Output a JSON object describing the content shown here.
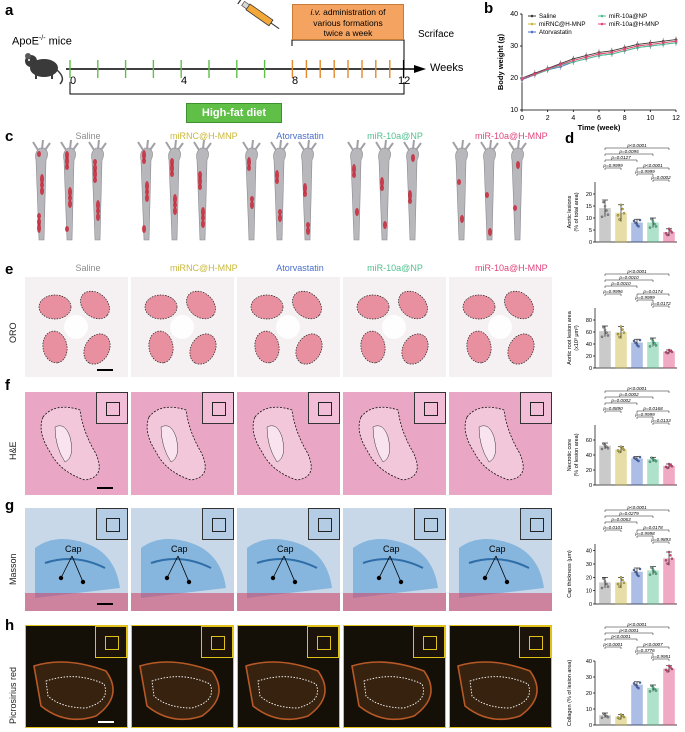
{
  "panels": {
    "a": "a",
    "b": "b",
    "c": "c",
    "d": "d",
    "e": "e",
    "f": "f",
    "g": "g",
    "h": "h"
  },
  "timeline": {
    "mouse_label": "ApoE",
    "mouse_sup": "-/-",
    "mouse_suffix": " mice",
    "iv_prefix": "i.v.",
    "iv_line1_rest": " administration  of",
    "iv_line2": "various formations",
    "iv_line3": "twice a week",
    "sacrifice": "Scriface",
    "weeks": "Weeks",
    "ticks": [
      "0",
      "4",
      "8",
      "12"
    ],
    "diet": "High-fat diet"
  },
  "groups": [
    "Saline",
    "miRNC@H-MNP",
    "Atorvastatin",
    "miR-10a@NP",
    "miR-10a@H-MNP"
  ],
  "group_colors": [
    "#8c8c8c",
    "#c9b83c",
    "#4a6fc9",
    "#4fc08d",
    "#e0457b"
  ],
  "rows": [
    "ORO",
    "H&E",
    "Masson",
    "Picrosirius red"
  ],
  "cap_label": "Cap",
  "chart_data": [
    {
      "id": "b",
      "type": "line",
      "xlabel": "Time (week)",
      "ylabel": "Body weight (g)",
      "x": [
        0,
        1,
        2,
        3,
        4,
        5,
        6,
        7,
        8,
        9,
        10,
        11,
        12
      ],
      "xticks": [
        "0",
        "2",
        "4",
        "6",
        "8",
        "10",
        "12"
      ],
      "yticks": [
        "10",
        "20",
        "30",
        "40"
      ],
      "ylim": [
        10,
        40
      ],
      "legend": [
        "Saline",
        "miRNC@H-MNP",
        "Atorvastatin",
        "miR-10a@NP",
        "miR-10a@H-MNP"
      ],
      "series": [
        {
          "name": "Saline",
          "color": "#3a3a3a",
          "values": [
            20,
            21.5,
            23,
            24.5,
            26,
            27,
            28,
            28.5,
            29.5,
            30.5,
            31,
            31.5,
            32
          ]
        },
        {
          "name": "miRNC@H-MNP",
          "color": "#c9b83c",
          "values": [
            19.5,
            21,
            22.5,
            24,
            25.5,
            26.5,
            27.5,
            28,
            29,
            30,
            30.5,
            31,
            31.5
          ]
        },
        {
          "name": "Atorvastatin",
          "color": "#4a6fc9",
          "values": [
            19.5,
            21,
            22.5,
            23.5,
            25,
            26,
            27,
            27.5,
            28.5,
            29.5,
            30,
            30.5,
            31
          ]
        },
        {
          "name": "miR-10a@NP",
          "color": "#4fc08d",
          "values": [
            20,
            21,
            22.5,
            24,
            25,
            26,
            27,
            27.5,
            28.5,
            29.5,
            30,
            30.5,
            31
          ]
        },
        {
          "name": "miR-10a@H-MNP",
          "color": "#e0457b",
          "values": [
            19.8,
            21.2,
            22.8,
            24.2,
            25.5,
            26.5,
            27.5,
            28,
            29,
            30,
            30.5,
            31,
            31.5
          ]
        }
      ]
    },
    {
      "id": "d",
      "type": "bar",
      "ylabel": "Aortic lesions\n(% of total area)",
      "categories": [
        "Saline",
        "miRNC@H-MNP",
        "Atorvastatin",
        "miR-10a@NP",
        "miR-10a@H-MNP"
      ],
      "values": [
        14,
        12,
        8,
        8,
        4
      ],
      "errors": [
        3.5,
        3.5,
        1.5,
        2,
        1.5
      ],
      "ylim": [
        0,
        25
      ],
      "yticks": [
        "0",
        "5",
        "10",
        "15",
        "20"
      ],
      "pvalues": [
        "p<0.0001",
        "p=0.0095",
        "p=0.0127",
        "p=0.9999",
        "p<0.0001",
        "p=0.9999",
        "p=0.0002"
      ]
    },
    {
      "id": "e",
      "type": "bar",
      "ylabel": "Aortic root lesion area\n(x10³ μm²)",
      "categories": [
        "Saline",
        "miRNC@H-MNP",
        "Atorvastatin",
        "miR-10a@NP",
        "miR-10a@H-MNP"
      ],
      "values": [
        61,
        59,
        42,
        43,
        27
      ],
      "errors": [
        9,
        10,
        6,
        7,
        3
      ],
      "ylim": [
        0,
        100
      ],
      "yticks": [
        "0",
        "20",
        "40",
        "60",
        "80"
      ],
      "pvalues": [
        "p<0.0001",
        "p=0.0010",
        "p=0.0010",
        "p=0.9996",
        "p=0.0174",
        "p=0.9999",
        "p=0.0172"
      ]
    },
    {
      "id": "f",
      "type": "bar",
      "ylabel": "Necrotic core\n(% of lesion area)",
      "categories": [
        "Saline",
        "miRNC@H-MNP",
        "Atorvastatin",
        "miR-10a@NP",
        "miR-10a@H-MNP"
      ],
      "values": [
        52,
        47,
        35,
        34,
        25
      ],
      "errors": [
        4,
        4,
        3,
        3,
        3
      ],
      "ylim": [
        0,
        80
      ],
      "yticks": [
        "0",
        "20",
        "40",
        "60"
      ],
      "pvalues": [
        "p<0.0001",
        "p=0.0002",
        "p=0.0002",
        "p=0.8890",
        "p=0.0168",
        "p=0.9999",
        "p=0.0133"
      ]
    },
    {
      "id": "g",
      "type": "bar",
      "ylabel": "Cap thickness (μm)",
      "categories": [
        "Saline",
        "miRNC@H-MNP",
        "Atorvastatin",
        "miR-10a@NP",
        "miR-10a@H-MNP"
      ],
      "values": [
        16,
        16,
        24,
        25,
        34
      ],
      "errors": [
        4,
        4,
        3,
        3,
        5
      ],
      "ylim": [
        0,
        45
      ],
      "yticks": [
        "0",
        "10",
        "20",
        "30",
        "40"
      ],
      "pvalues": [
        "p<0.0001",
        "p=0.0279",
        "p=0.0063",
        "p=0.0101",
        "p=0.0178",
        "p=0.9998",
        "p=0.9893"
      ]
    },
    {
      "id": "h",
      "type": "bar",
      "ylabel": "Collagen (% of lesion area)",
      "categories": [
        "Saline",
        "miRNC@H-MNP",
        "Atorvastatin",
        "miR-10a@NP",
        "miR-10a@H-MNP"
      ],
      "values": [
        6,
        5,
        25,
        23,
        35
      ],
      "errors": [
        1.5,
        1.5,
        2,
        2,
        2
      ],
      "ylim": [
        0,
        40
      ],
      "yticks": [
        "0",
        "10",
        "20",
        "30",
        "40"
      ],
      "pvalues": [
        "p<0.0001",
        "p<0.0001",
        "p<0.0001",
        "p<0.0001",
        "p<0.0007",
        "p=0.3776",
        "p=0.9951"
      ]
    }
  ]
}
